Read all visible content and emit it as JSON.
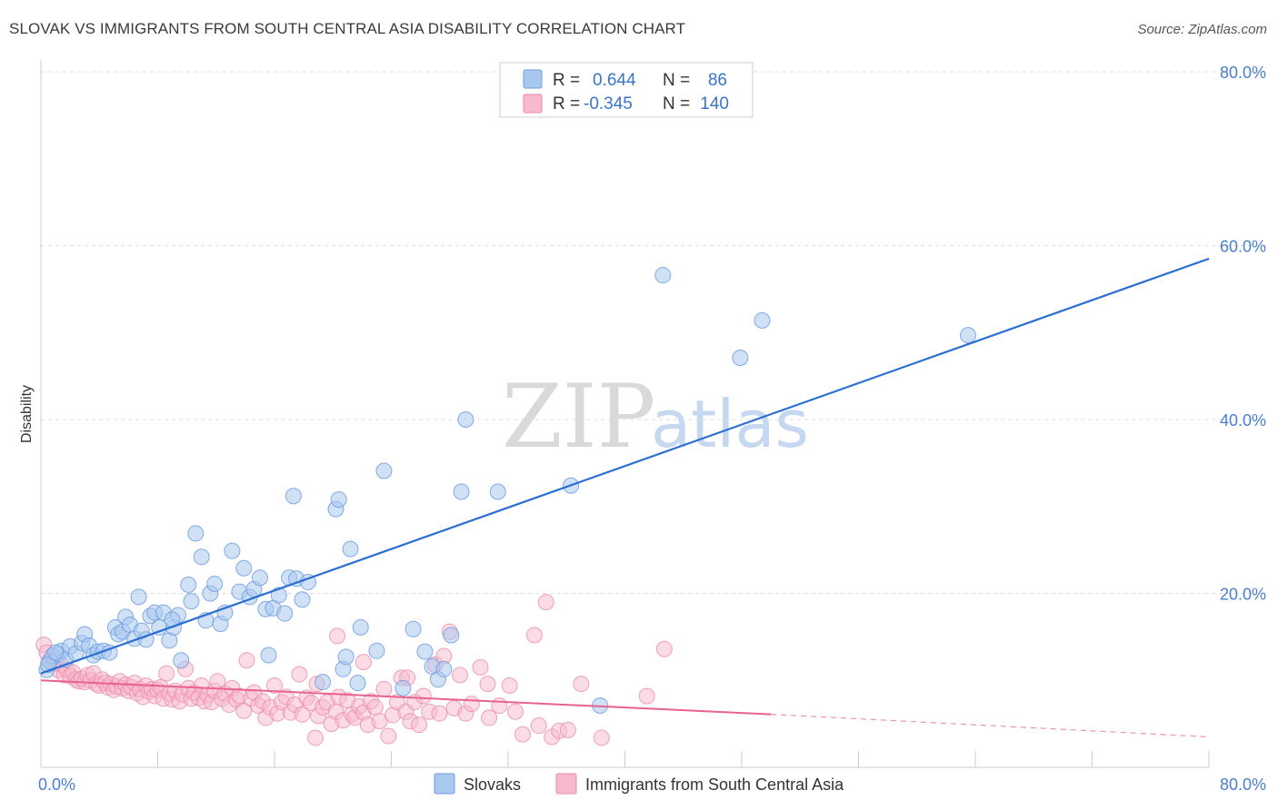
{
  "title": "SLOVAK VS IMMIGRANTS FROM SOUTH CENTRAL ASIA DISABILITY CORRELATION CHART",
  "source": "Source: ZipAtlas.com",
  "watermark": {
    "zip": "ZIP",
    "atlas": "atlas"
  },
  "colors": {
    "blue_fill": "#a9c8ef",
    "blue_stroke": "#6f9ee0",
    "blue_line": "#2a6fd4",
    "pink_fill": "#f7b9cc",
    "pink_stroke": "#ec8bab",
    "pink_line": "#e8628f",
    "axis_text": "#4a7fd0",
    "grid": "#dddddd"
  },
  "legend": {
    "rows": [
      {
        "r_label": "R =",
        "r_value": "0.644",
        "n_label": "N =",
        "n_value": "86"
      },
      {
        "r_label": "R =",
        "r_value": "-0.345",
        "n_label": "N =",
        "n_value": "140"
      }
    ]
  },
  "bottom_legend": [
    "Slovaks",
    "Immigrants from South Central Asia"
  ],
  "chart_data": {
    "type": "scatter",
    "title": "SLOVAK VS IMMIGRANTS FROM SOUTH CENTRAL ASIA DISABILITY CORRELATION CHART",
    "xlabel": "",
    "ylabel": "Disability",
    "xlim": [
      0,
      80
    ],
    "ylim": [
      0,
      80
    ],
    "x_tick_labels": [
      "0.0%",
      "80.0%"
    ],
    "y_tick_labels": [
      "20.0%",
      "40.0%",
      "60.0%",
      "80.0%"
    ],
    "y_ticks": [
      20,
      40,
      60,
      80
    ],
    "grid": true,
    "legend_position": "top-center",
    "series": [
      {
        "name": "Slovaks",
        "color": "#a9c8ef",
        "trend": {
          "x": [
            0,
            80
          ],
          "y": [
            10.8,
            58.5
          ],
          "r": 0.644,
          "n": 86
        },
        "points": [
          [
            0.4,
            11.2
          ],
          [
            0.6,
            12.2
          ],
          [
            0.8,
            12.8
          ],
          [
            1.2,
            13.0
          ],
          [
            1.4,
            13.4
          ],
          [
            1.7,
            12.4
          ],
          [
            2.0,
            13.9
          ],
          [
            2.4,
            13.1
          ],
          [
            2.8,
            14.3
          ],
          [
            3.0,
            15.3
          ],
          [
            3.3,
            14.0
          ],
          [
            3.6,
            12.9
          ],
          [
            3.9,
            13.3
          ],
          [
            4.3,
            13.4
          ],
          [
            4.7,
            13.2
          ],
          [
            5.1,
            16.1
          ],
          [
            5.3,
            15.3
          ],
          [
            5.6,
            15.6
          ],
          [
            5.8,
            17.3
          ],
          [
            6.1,
            16.4
          ],
          [
            6.4,
            14.8
          ],
          [
            6.7,
            19.6
          ],
          [
            6.9,
            15.7
          ],
          [
            7.2,
            14.7
          ],
          [
            7.5,
            17.4
          ],
          [
            7.8,
            17.8
          ],
          [
            8.1,
            16.1
          ],
          [
            8.4,
            17.8
          ],
          [
            8.8,
            14.6
          ],
          [
            9.1,
            16.1
          ],
          [
            9.4,
            17.5
          ],
          [
            9.6,
            12.3
          ],
          [
            10.1,
            21.0
          ],
          [
            10.3,
            19.1
          ],
          [
            10.6,
            26.9
          ],
          [
            11.0,
            24.2
          ],
          [
            11.3,
            16.9
          ],
          [
            11.6,
            20.0
          ],
          [
            11.9,
            21.1
          ],
          [
            12.3,
            16.5
          ],
          [
            12.6,
            17.8
          ],
          [
            13.1,
            24.9
          ],
          [
            13.6,
            20.2
          ],
          [
            13.9,
            22.9
          ],
          [
            14.3,
            19.6
          ],
          [
            14.6,
            20.5
          ],
          [
            15.0,
            21.8
          ],
          [
            15.4,
            18.2
          ],
          [
            15.6,
            12.9
          ],
          [
            15.9,
            18.3
          ],
          [
            16.3,
            19.8
          ],
          [
            16.7,
            17.7
          ],
          [
            17.0,
            21.8
          ],
          [
            17.3,
            31.2
          ],
          [
            17.5,
            21.7
          ],
          [
            17.9,
            19.3
          ],
          [
            18.3,
            21.3
          ],
          [
            19.3,
            9.8
          ],
          [
            20.2,
            29.7
          ],
          [
            20.4,
            30.8
          ],
          [
            20.7,
            11.3
          ],
          [
            20.9,
            12.7
          ],
          [
            21.2,
            25.1
          ],
          [
            21.7,
            9.7
          ],
          [
            21.9,
            16.1
          ],
          [
            23.0,
            13.4
          ],
          [
            23.5,
            34.1
          ],
          [
            24.8,
            9.1
          ],
          [
            25.5,
            15.9
          ],
          [
            26.3,
            13.3
          ],
          [
            26.8,
            11.6
          ],
          [
            27.2,
            10.1
          ],
          [
            27.6,
            11.3
          ],
          [
            28.1,
            15.2
          ],
          [
            29.1,
            40.0
          ],
          [
            28.8,
            31.7
          ],
          [
            31.3,
            31.7
          ],
          [
            36.3,
            32.4
          ],
          [
            38.3,
            7.1
          ],
          [
            42.6,
            56.6
          ],
          [
            47.9,
            47.1
          ],
          [
            49.4,
            51.4
          ],
          [
            63.5,
            49.7
          ],
          [
            0.5,
            11.8
          ],
          [
            1.0,
            13.2
          ],
          [
            9.0,
            17.0
          ]
        ]
      },
      {
        "name": "Immigrants from South Central Asia",
        "color": "#f7b9cc",
        "trend": {
          "x": [
            0,
            50
          ],
          "y": [
            10.0,
            6.1
          ],
          "extended_x": [
            50,
            80
          ],
          "extended_y": [
            6.1,
            3.5
          ],
          "r": -0.345,
          "n": 140
        },
        "points": [
          [
            0.2,
            14.1
          ],
          [
            0.4,
            13.2
          ],
          [
            0.6,
            12.2
          ],
          [
            0.8,
            11.9
          ],
          [
            1.0,
            12.3
          ],
          [
            1.2,
            11.2
          ],
          [
            1.4,
            11.8
          ],
          [
            1.6,
            10.6
          ],
          [
            1.8,
            11.2
          ],
          [
            2.0,
            10.5
          ],
          [
            2.2,
            10.9
          ],
          [
            2.4,
            10.1
          ],
          [
            2.6,
            9.9
          ],
          [
            2.8,
            10.2
          ],
          [
            3.0,
            9.8
          ],
          [
            3.2,
            10.6
          ],
          [
            3.4,
            10.0
          ],
          [
            3.6,
            10.8
          ],
          [
            3.8,
            9.6
          ],
          [
            4.0,
            9.4
          ],
          [
            4.2,
            10.1
          ],
          [
            4.4,
            9.7
          ],
          [
            4.6,
            9.2
          ],
          [
            4.8,
            9.6
          ],
          [
            5.0,
            8.9
          ],
          [
            5.2,
            9.3
          ],
          [
            5.4,
            9.9
          ],
          [
            5.6,
            9.1
          ],
          [
            5.8,
            9.5
          ],
          [
            6.0,
            8.8
          ],
          [
            6.2,
            9.2
          ],
          [
            6.4,
            9.7
          ],
          [
            6.6,
            8.5
          ],
          [
            6.8,
            9.0
          ],
          [
            7.0,
            8.1
          ],
          [
            7.2,
            9.4
          ],
          [
            7.4,
            8.7
          ],
          [
            7.6,
            9.0
          ],
          [
            7.8,
            8.2
          ],
          [
            8.0,
            8.9
          ],
          [
            8.2,
            9.2
          ],
          [
            8.4,
            7.9
          ],
          [
            8.6,
            10.8
          ],
          [
            8.8,
            8.5
          ],
          [
            9.0,
            7.8
          ],
          [
            9.2,
            8.8
          ],
          [
            9.5,
            7.6
          ],
          [
            9.7,
            8.4
          ],
          [
            9.9,
            11.3
          ],
          [
            10.1,
            9.1
          ],
          [
            10.3,
            7.9
          ],
          [
            10.5,
            8.6
          ],
          [
            10.8,
            8.0
          ],
          [
            11.0,
            9.4
          ],
          [
            11.2,
            7.6
          ],
          [
            11.4,
            8.3
          ],
          [
            11.7,
            7.5
          ],
          [
            11.9,
            8.8
          ],
          [
            12.1,
            9.9
          ],
          [
            12.4,
            7.9
          ],
          [
            12.6,
            8.5
          ],
          [
            12.9,
            7.2
          ],
          [
            13.1,
            9.1
          ],
          [
            13.4,
            7.8
          ],
          [
            13.6,
            8.2
          ],
          [
            13.9,
            6.5
          ],
          [
            14.1,
            12.3
          ],
          [
            14.4,
            7.9
          ],
          [
            14.6,
            8.6
          ],
          [
            14.9,
            7.1
          ],
          [
            15.2,
            7.6
          ],
          [
            15.4,
            5.7
          ],
          [
            15.7,
            6.9
          ],
          [
            16.0,
            9.4
          ],
          [
            16.2,
            6.2
          ],
          [
            16.5,
            7.5
          ],
          [
            16.8,
            8.1
          ],
          [
            17.1,
            6.3
          ],
          [
            17.4,
            7.2
          ],
          [
            17.7,
            10.7
          ],
          [
            17.9,
            6.1
          ],
          [
            18.2,
            8.0
          ],
          [
            18.5,
            7.4
          ],
          [
            18.8,
            3.4
          ],
          [
            19.0,
            5.9
          ],
          [
            19.3,
            6.9
          ],
          [
            19.6,
            7.5
          ],
          [
            19.9,
            5.0
          ],
          [
            20.2,
            6.4
          ],
          [
            20.4,
            8.1
          ],
          [
            20.7,
            5.4
          ],
          [
            21.0,
            7.7
          ],
          [
            21.3,
            6.1
          ],
          [
            21.5,
            5.7
          ],
          [
            21.8,
            7.0
          ],
          [
            22.1,
            6.3
          ],
          [
            22.4,
            4.9
          ],
          [
            22.6,
            7.6
          ],
          [
            22.9,
            6.9
          ],
          [
            23.2,
            5.3
          ],
          [
            23.5,
            9.0
          ],
          [
            23.8,
            3.6
          ],
          [
            24.1,
            6.0
          ],
          [
            24.4,
            7.5
          ],
          [
            24.7,
            10.3
          ],
          [
            25.0,
            6.4
          ],
          [
            25.3,
            5.3
          ],
          [
            25.6,
            7.5
          ],
          [
            25.9,
            4.9
          ],
          [
            26.2,
            8.2
          ],
          [
            26.6,
            6.4
          ],
          [
            27.0,
            11.8
          ],
          [
            27.3,
            6.2
          ],
          [
            27.6,
            12.8
          ],
          [
            28.0,
            15.6
          ],
          [
            28.3,
            6.8
          ],
          [
            28.7,
            10.6
          ],
          [
            29.1,
            6.2
          ],
          [
            29.5,
            7.3
          ],
          [
            30.1,
            11.5
          ],
          [
            30.7,
            5.7
          ],
          [
            31.4,
            7.1
          ],
          [
            32.1,
            9.4
          ],
          [
            32.5,
            6.4
          ],
          [
            33.0,
            3.8
          ],
          [
            33.8,
            15.2
          ],
          [
            34.1,
            4.8
          ],
          [
            34.6,
            19.0
          ],
          [
            35.0,
            3.5
          ],
          [
            35.5,
            4.2
          ],
          [
            36.1,
            4.3
          ],
          [
            37.0,
            9.6
          ],
          [
            38.4,
            3.4
          ],
          [
            41.5,
            8.2
          ],
          [
            20.3,
            15.1
          ],
          [
            25.1,
            10.3
          ],
          [
            42.7,
            13.6
          ],
          [
            22.1,
            12.1
          ],
          [
            18.9,
            9.6
          ],
          [
            30.6,
            9.6
          ]
        ]
      }
    ]
  }
}
